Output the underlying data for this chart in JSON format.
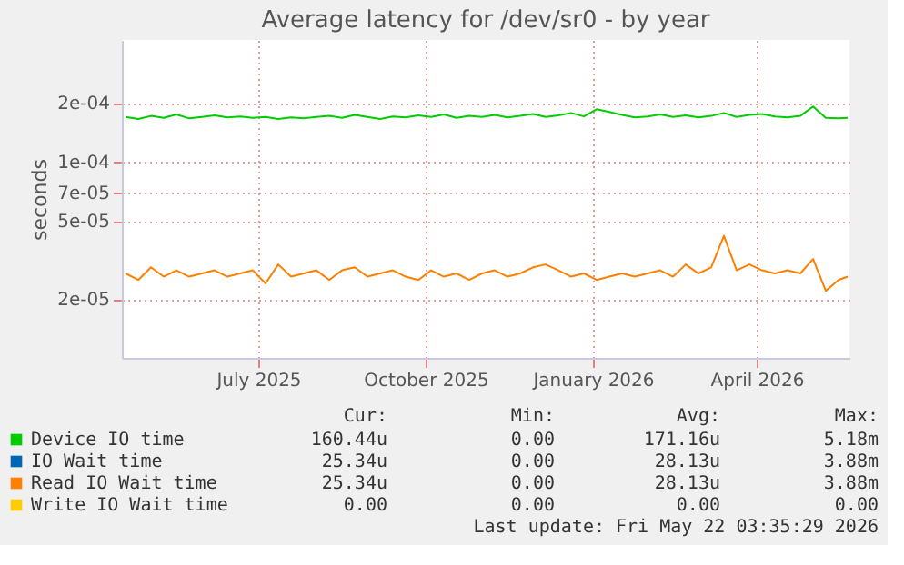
{
  "chart_data": {
    "type": "line",
    "title": "Average latency for /dev/sr0 - by year",
    "ylabel": "seconds",
    "x": [
      "2025-04-19",
      "2025-04-26",
      "2025-05-03",
      "2025-05-10",
      "2025-05-17",
      "2025-05-24",
      "2025-05-31",
      "2025-06-07",
      "2025-06-14",
      "2025-06-21",
      "2025-06-28",
      "2025-07-05",
      "2025-07-12",
      "2025-07-19",
      "2025-07-26",
      "2025-08-02",
      "2025-08-09",
      "2025-08-16",
      "2025-08-23",
      "2025-08-30",
      "2025-09-06",
      "2025-09-13",
      "2025-09-20",
      "2025-09-27",
      "2025-10-04",
      "2025-10-11",
      "2025-10-18",
      "2025-10-25",
      "2025-11-01",
      "2025-11-08",
      "2025-11-15",
      "2025-11-22",
      "2025-11-29",
      "2025-12-06",
      "2025-12-13",
      "2025-12-20",
      "2025-12-27",
      "2026-01-03",
      "2026-01-10",
      "2026-01-17",
      "2026-01-24",
      "2026-01-31",
      "2026-02-07",
      "2026-02-14",
      "2026-02-21",
      "2026-02-28",
      "2026-03-07",
      "2026-03-14",
      "2026-03-21",
      "2026-03-28",
      "2026-04-04",
      "2026-04-11",
      "2026-04-18",
      "2026-04-25",
      "2026-05-02",
      "2026-05-09",
      "2026-05-16",
      "2026-05-21"
    ],
    "series": [
      {
        "name": "Device IO time",
        "color": "#00cc00",
        "values": [
          0.00017,
          0.000166,
          0.000172,
          0.000168,
          0.000175,
          0.000167,
          0.00017,
          0.000173,
          0.000169,
          0.000171,
          0.000168,
          0.00017,
          0.000166,
          0.000169,
          0.000167,
          0.00017,
          0.000172,
          0.000168,
          0.000174,
          0.00017,
          0.000166,
          0.000171,
          0.000169,
          0.000173,
          0.00017,
          0.000175,
          0.000168,
          0.000172,
          0.00017,
          0.000174,
          0.000169,
          0.000172,
          0.000176,
          0.00017,
          0.000173,
          0.000178,
          0.000171,
          0.000186,
          0.00018,
          0.000174,
          0.000169,
          0.000171,
          0.000175,
          0.00017,
          0.000173,
          0.000169,
          0.000172,
          0.000178,
          0.00017,
          0.000174,
          0.000176,
          0.000171,
          0.000169,
          0.000172,
          0.000192,
          0.000168,
          0.000167,
          0.000168
        ]
      },
      {
        "name": "IO Wait time",
        "color": "#0066b3",
        "values": [
          null,
          null,
          null,
          null,
          null,
          null,
          null,
          null,
          null,
          null,
          null,
          null,
          null,
          null,
          null,
          null,
          null,
          null,
          null,
          null,
          null,
          null,
          null,
          null,
          null,
          null,
          null,
          null,
          null,
          null,
          null,
          null,
          null,
          null,
          null,
          null,
          null,
          null,
          null,
          null,
          null,
          null,
          null,
          null,
          null,
          null,
          null,
          null,
          null,
          null,
          null,
          null,
          null,
          null,
          null,
          null,
          null,
          null
        ]
      },
      {
        "name": "Read IO Wait time",
        "color": "#ff8000",
        "values": [
          2.7e-05,
          2.5e-05,
          2.9e-05,
          2.6e-05,
          2.8e-05,
          2.6e-05,
          2.7e-05,
          2.8e-05,
          2.6e-05,
          2.7e-05,
          2.8e-05,
          2.4e-05,
          3e-05,
          2.6e-05,
          2.7e-05,
          2.8e-05,
          2.5e-05,
          2.8e-05,
          2.9e-05,
          2.6e-05,
          2.7e-05,
          2.8e-05,
          2.6e-05,
          2.5e-05,
          2.8e-05,
          2.6e-05,
          2.7e-05,
          2.5e-05,
          2.7e-05,
          2.8e-05,
          2.6e-05,
          2.7e-05,
          2.9e-05,
          3e-05,
          2.8e-05,
          2.6e-05,
          2.7e-05,
          2.5e-05,
          2.6e-05,
          2.7e-05,
          2.6e-05,
          2.7e-05,
          2.8e-05,
          2.6e-05,
          3e-05,
          2.7e-05,
          2.9e-05,
          4.2e-05,
          2.8e-05,
          3e-05,
          2.8e-05,
          2.7e-05,
          2.8e-05,
          2.7e-05,
          3.2e-05,
          2.2e-05,
          2.5e-05,
          2.6e-05
        ]
      },
      {
        "name": "Write IO Wait time",
        "color": "#ffcc00",
        "values": [
          null,
          null,
          null,
          null,
          null,
          null,
          null,
          null,
          null,
          null,
          null,
          null,
          null,
          null,
          null,
          null,
          null,
          null,
          null,
          null,
          null,
          null,
          null,
          null,
          null,
          null,
          null,
          null,
          null,
          null,
          null,
          null,
          null,
          null,
          null,
          null,
          null,
          null,
          null,
          null,
          null,
          null,
          null,
          null,
          null,
          null,
          null,
          null,
          null,
          null,
          null,
          null,
          null,
          null,
          null,
          null,
          null,
          null
        ]
      }
    ],
    "xlim": [
      "2025-04-17",
      "2026-05-22"
    ],
    "xticks": [
      {
        "value": "2025-07-01",
        "label": "July 2025"
      },
      {
        "value": "2025-10-01",
        "label": "October 2025"
      },
      {
        "value": "2026-01-01",
        "label": "January 2026"
      },
      {
        "value": "2026-04-01",
        "label": "April 2026"
      }
    ],
    "ylim": [
      1e-05,
      0.00042
    ],
    "log": true,
    "yticks": [
      {
        "value": 2e-05,
        "label": "2e-05"
      },
      {
        "value": 5e-05,
        "label": "5e-05"
      },
      {
        "value": 7e-05,
        "label": "7e-05"
      },
      {
        "value": 0.0001,
        "label": "1e-04"
      },
      {
        "value": 0.0002,
        "label": "2e-04"
      }
    ],
    "grid": true,
    "legend": "bottom",
    "annotations": [
      "Cur:",
      "Min:",
      "Avg:",
      "Max:",
      "160.44u",
      "0.00",
      "171.16u",
      "5.18m",
      "25.34u",
      "0.00",
      "28.13u",
      "3.88m",
      "25.34u",
      "0.00",
      "28.13u",
      "3.88m",
      "0.00",
      "0.00",
      "0.00",
      "0.00",
      "Last update: Fri May 22 03:35:29 2026"
    ]
  }
}
